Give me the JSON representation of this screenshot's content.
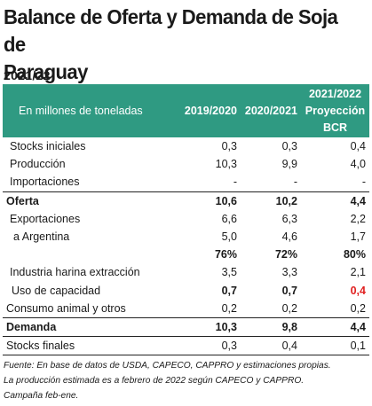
{
  "title_line1": "Balance de Oferta y Demanda de Soja de",
  "title_line2": "Paraguay",
  "season": "2021/22",
  "table": {
    "header": {
      "label": "En millones de toneladas",
      "col1": "2019/2020",
      "col2": "2020/2021",
      "col3_line1": "2021/2022",
      "col3_line2": "Proyección",
      "col3_line3": "BCR"
    },
    "rows": [
      {
        "label": "Stocks iniciales",
        "v1": "0,3",
        "v2": "0,3",
        "v3": "0,4"
      },
      {
        "label": "Producción",
        "v1": "10,3",
        "v2": "9,9",
        "v3": "4,0"
      },
      {
        "label": "Importaciones",
        "v1": "-",
        "v2": "-",
        "v3": "-"
      },
      {
        "label": "Oferta",
        "v1": "10,6",
        "v2": "10,2",
        "v3": "4,4"
      },
      {
        "label": "Exportaciones",
        "v1": "6,6",
        "v2": "6,3",
        "v3": "2,2"
      },
      {
        "label": "a Argentina",
        "v1": "5,0",
        "v2": "4,6",
        "v3": "1,7"
      },
      {
        "label": "",
        "v1": "76%",
        "v2": "72%",
        "v3": "80%"
      },
      {
        "label": "Industria harina extracción",
        "v1": "3,5",
        "v2": "3,3",
        "v3": "2,1"
      },
      {
        "label": "Uso de capacidad",
        "v1": "0,7",
        "v2": "0,7",
        "v3": "0,4"
      },
      {
        "label": "Consumo animal y otros",
        "v1": "0,2",
        "v2": "0,2",
        "v3": "0,2"
      },
      {
        "label": "Demanda",
        "v1": "10,3",
        "v2": "9,8",
        "v3": "4,4"
      },
      {
        "label": "Stocks finales",
        "v1": "0,3",
        "v2": "0,4",
        "v3": "0,1"
      }
    ]
  },
  "footnote": {
    "line1": "Fuente: En base de datos de USDA, CAPECO, CAPPRO y estimaciones propias.",
    "line2": "La producción estimada es a febrero de 2022 según CAPECO y CAPPRO.",
    "line3": "Campaña feb-ene."
  },
  "colors": {
    "header_bg": "#2f9a82",
    "header_text": "#ffffff",
    "highlight": "#e02020"
  }
}
